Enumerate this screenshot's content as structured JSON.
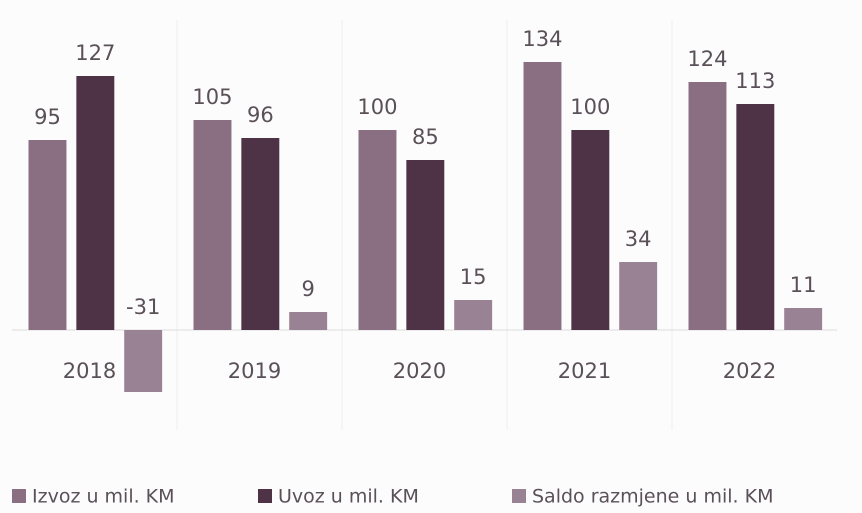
{
  "chart_data": {
    "type": "bar",
    "categories": [
      "2018",
      "2019",
      "2020",
      "2021",
      "2022"
    ],
    "series": [
      {
        "name": "Izvoz u mil. KM",
        "color": "#8a6f82",
        "values": [
          95,
          105,
          100,
          134,
          124
        ]
      },
      {
        "name": "Uvoz u mil. KM",
        "color": "#4e3346",
        "values": [
          127,
          96,
          85,
          100,
          113
        ]
      },
      {
        "name": "Saldo razmjene u mil. KM",
        "color": "#9a8295",
        "values": [
          -31,
          9,
          15,
          34,
          11
        ]
      }
    ],
    "ylim": [
      -50,
      155
    ],
    "legend": "bottom"
  }
}
